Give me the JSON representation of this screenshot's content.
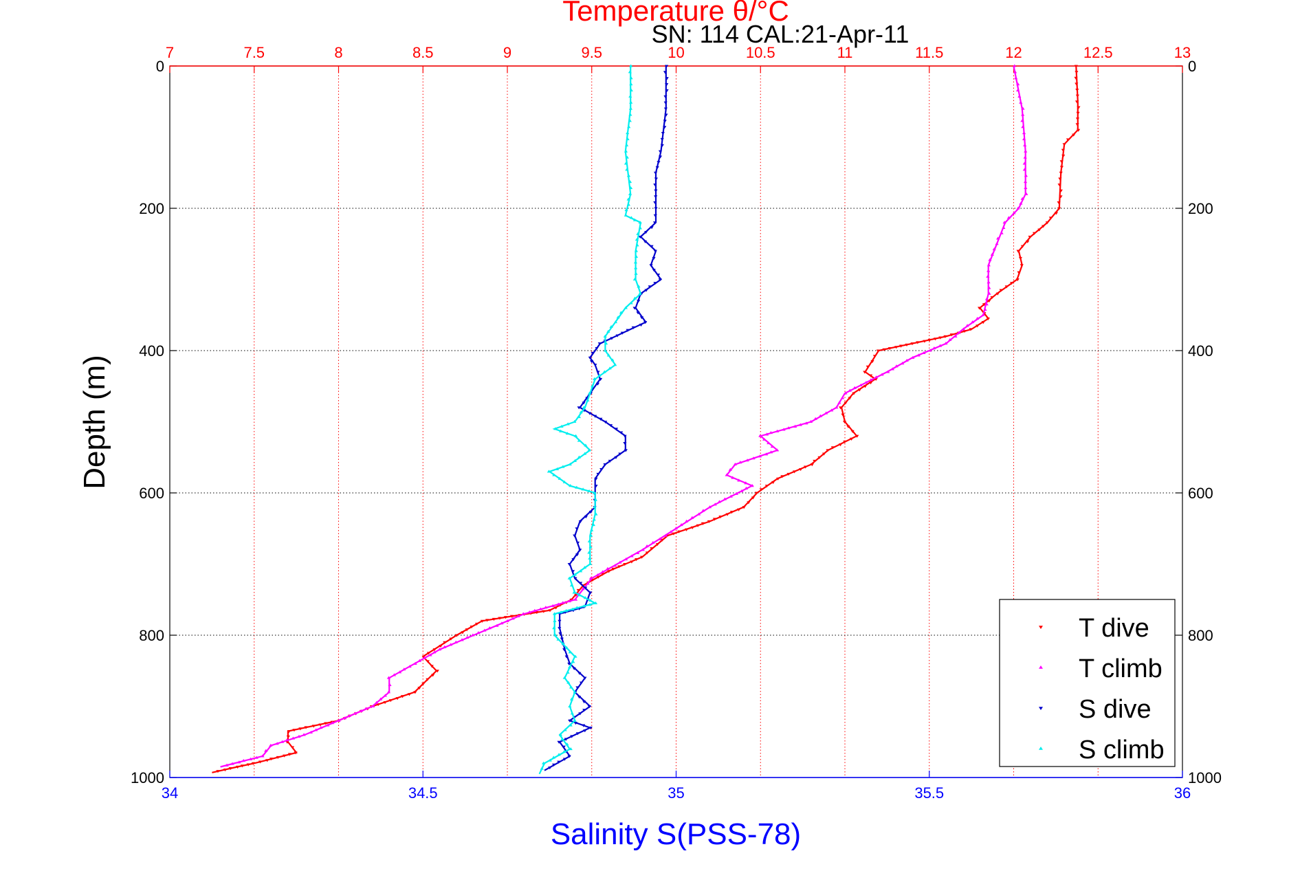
{
  "chart_data": {
    "type": "scatter",
    "title": "Temperature θ/°C",
    "subtitle": "SN: 114  CAL:21-Apr-11",
    "ylabel": "Depth (m)",
    "xlabel_bottom": "Salinity S(PSS-78)",
    "xlabel_top": "Temperature θ/°C",
    "y_reversed": true,
    "ylim": [
      0,
      1000
    ],
    "y_ticks": [
      "0",
      "200",
      "400",
      "600",
      "800",
      "1000"
    ],
    "x_bottom_lim": [
      34,
      36
    ],
    "x_bottom_ticks": [
      "34",
      "34.5",
      "35",
      "35.5",
      "36"
    ],
    "x_top_lim": [
      7,
      13
    ],
    "x_top_ticks": [
      "7",
      "7.5",
      "8",
      "8.5",
      "9",
      "9.5",
      "10",
      "10.5",
      "11",
      "11.5",
      "12",
      "12.5",
      "13"
    ],
    "grid": true,
    "legend_position": "bottom-right",
    "colors": {
      "title": "#ff0000",
      "bottom_axis": "#0000ff",
      "t_dive": "#ff0000",
      "t_climb": "#ff00ff",
      "s_dive": "#0000cc",
      "s_climb": "#00eeee"
    },
    "series": [
      {
        "name": "T dive",
        "axis": "top",
        "marker": "triangle-down",
        "color": "#ff0000",
        "points": [
          [
            12.37,
            0
          ],
          [
            12.38,
            50
          ],
          [
            12.38,
            90
          ],
          [
            12.3,
            110
          ],
          [
            12.28,
            150
          ],
          [
            12.27,
            200
          ],
          [
            12.2,
            220
          ],
          [
            12.1,
            240
          ],
          [
            12.03,
            260
          ],
          [
            12.05,
            280
          ],
          [
            12.02,
            300
          ],
          [
            11.9,
            320
          ],
          [
            11.8,
            340
          ],
          [
            11.85,
            355
          ],
          [
            11.75,
            370
          ],
          [
            11.6,
            380
          ],
          [
            11.4,
            390
          ],
          [
            11.2,
            400
          ],
          [
            11.12,
            430
          ],
          [
            11.18,
            440
          ],
          [
            11.05,
            460
          ],
          [
            10.98,
            480
          ],
          [
            11.0,
            500
          ],
          [
            11.07,
            520
          ],
          [
            10.9,
            540
          ],
          [
            10.8,
            560
          ],
          [
            10.6,
            580
          ],
          [
            10.48,
            600
          ],
          [
            10.4,
            620
          ],
          [
            10.2,
            640
          ],
          [
            9.95,
            660
          ],
          [
            9.8,
            690
          ],
          [
            9.6,
            710
          ],
          [
            9.45,
            730
          ],
          [
            9.38,
            750
          ],
          [
            9.25,
            765
          ],
          [
            8.85,
            780
          ],
          [
            8.7,
            800
          ],
          [
            8.5,
            830
          ],
          [
            8.58,
            850
          ],
          [
            8.45,
            880
          ],
          [
            8.2,
            900
          ],
          [
            8.0,
            920
          ],
          [
            7.7,
            935
          ],
          [
            7.7,
            950
          ],
          [
            7.75,
            965
          ],
          [
            7.5,
            980
          ],
          [
            7.4,
            985
          ],
          [
            7.25,
            993
          ]
        ]
      },
      {
        "name": "T climb",
        "axis": "top",
        "marker": "triangle-up",
        "color": "#ff00ff",
        "points": [
          [
            12.0,
            0
          ],
          [
            12.05,
            60
          ],
          [
            12.07,
            120
          ],
          [
            12.07,
            180
          ],
          [
            12.03,
            200
          ],
          [
            11.95,
            220
          ],
          [
            11.9,
            250
          ],
          [
            11.85,
            280
          ],
          [
            11.85,
            320
          ],
          [
            11.82,
            350
          ],
          [
            11.7,
            370
          ],
          [
            11.6,
            390
          ],
          [
            11.4,
            410
          ],
          [
            11.25,
            430
          ],
          [
            11.0,
            460
          ],
          [
            10.95,
            480
          ],
          [
            10.8,
            500
          ],
          [
            10.5,
            520
          ],
          [
            10.6,
            540
          ],
          [
            10.35,
            560
          ],
          [
            10.3,
            575
          ],
          [
            10.45,
            590
          ],
          [
            10.2,
            620
          ],
          [
            10.0,
            650
          ],
          [
            9.8,
            680
          ],
          [
            9.5,
            720
          ],
          [
            9.4,
            750
          ],
          [
            9.1,
            770
          ],
          [
            8.9,
            790
          ],
          [
            8.8,
            800
          ],
          [
            8.6,
            820
          ],
          [
            8.45,
            840
          ],
          [
            8.3,
            860
          ],
          [
            8.3,
            880
          ],
          [
            8.2,
            900
          ],
          [
            8.0,
            920
          ],
          [
            7.8,
            940
          ],
          [
            7.6,
            955
          ],
          [
            7.55,
            970
          ],
          [
            7.3,
            985
          ]
        ]
      },
      {
        "name": "S dive",
        "axis": "bottom",
        "marker": "triangle-down",
        "color": "#0000cc",
        "points": [
          [
            34.98,
            0
          ],
          [
            34.98,
            60
          ],
          [
            34.97,
            120
          ],
          [
            34.96,
            150
          ],
          [
            34.96,
            200
          ],
          [
            34.96,
            220
          ],
          [
            34.93,
            240
          ],
          [
            34.96,
            260
          ],
          [
            34.95,
            280
          ],
          [
            34.97,
            300
          ],
          [
            34.93,
            320
          ],
          [
            34.92,
            340
          ],
          [
            34.94,
            360
          ],
          [
            34.85,
            390
          ],
          [
            34.83,
            410
          ],
          [
            34.84,
            420
          ],
          [
            34.85,
            440
          ],
          [
            34.83,
            460
          ],
          [
            34.81,
            480
          ],
          [
            34.86,
            500
          ],
          [
            34.9,
            520
          ],
          [
            34.9,
            540
          ],
          [
            34.86,
            560
          ],
          [
            34.84,
            580
          ],
          [
            34.84,
            600
          ],
          [
            34.84,
            620
          ],
          [
            34.81,
            640
          ],
          [
            34.8,
            660
          ],
          [
            34.81,
            680
          ],
          [
            34.79,
            700
          ],
          [
            34.8,
            720
          ],
          [
            34.83,
            740
          ],
          [
            34.82,
            760
          ],
          [
            34.77,
            770
          ],
          [
            34.77,
            790
          ],
          [
            34.78,
            820
          ],
          [
            34.79,
            840
          ],
          [
            34.82,
            860
          ],
          [
            34.8,
            880
          ],
          [
            34.83,
            900
          ],
          [
            34.79,
            920
          ],
          [
            34.83,
            930
          ],
          [
            34.77,
            950
          ],
          [
            34.79,
            970
          ],
          [
            34.74,
            990
          ]
        ]
      },
      {
        "name": "S climb",
        "axis": "bottom",
        "marker": "triangle-up",
        "color": "#00eeee",
        "points": [
          [
            34.91,
            0
          ],
          [
            34.91,
            60
          ],
          [
            34.9,
            120
          ],
          [
            34.91,
            180
          ],
          [
            34.9,
            210
          ],
          [
            34.93,
            220
          ],
          [
            34.92,
            260
          ],
          [
            34.92,
            300
          ],
          [
            34.93,
            320
          ],
          [
            34.9,
            340
          ],
          [
            34.88,
            360
          ],
          [
            34.86,
            380
          ],
          [
            34.86,
            400
          ],
          [
            34.88,
            420
          ],
          [
            34.84,
            440
          ],
          [
            34.83,
            460
          ],
          [
            34.82,
            480
          ],
          [
            34.8,
            500
          ],
          [
            34.76,
            510
          ],
          [
            34.8,
            520
          ],
          [
            34.83,
            540
          ],
          [
            34.79,
            560
          ],
          [
            34.75,
            570
          ],
          [
            34.79,
            590
          ],
          [
            34.84,
            600
          ],
          [
            34.84,
            630
          ],
          [
            34.83,
            660
          ],
          [
            34.83,
            700
          ],
          [
            34.79,
            720
          ],
          [
            34.8,
            740
          ],
          [
            34.84,
            755
          ],
          [
            34.76,
            770
          ],
          [
            34.76,
            800
          ],
          [
            34.8,
            830
          ],
          [
            34.78,
            860
          ],
          [
            34.8,
            880
          ],
          [
            34.79,
            900
          ],
          [
            34.8,
            920
          ],
          [
            34.77,
            940
          ],
          [
            34.79,
            960
          ],
          [
            34.74,
            980
          ],
          [
            34.73,
            995
          ]
        ]
      }
    ]
  }
}
